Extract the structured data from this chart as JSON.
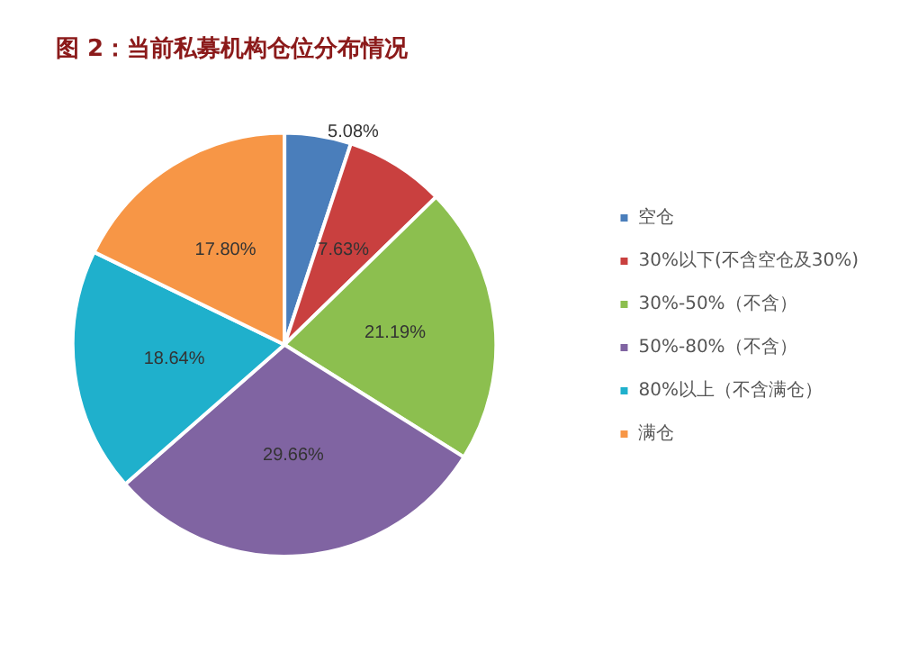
{
  "chart_data": {
    "type": "pie",
    "title": "图 2：当前私募机构仓位分布情况",
    "categories": [
      "空仓",
      "30%以下(不含空仓及30%)",
      "30%-50%（不含）",
      "50%-80%（不含）",
      "80%以上（不含满仓）",
      "满仓"
    ],
    "values": [
      5.08,
      7.63,
      21.19,
      29.66,
      18.64,
      17.8
    ],
    "value_labels": [
      "5.08%",
      "7.63%",
      "21.19%",
      "29.66%",
      "18.64%",
      "17.80%"
    ],
    "colors": [
      "#4a7ebb",
      "#c9403f",
      "#8cbf4f",
      "#8064a2",
      "#1fb0cc",
      "#f79646"
    ],
    "legend": "right"
  }
}
